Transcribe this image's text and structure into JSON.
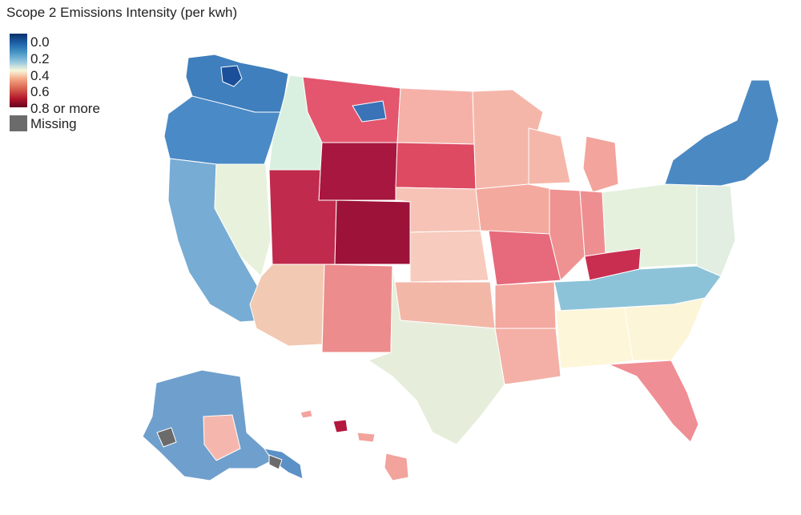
{
  "title": "Scope 2 Emissions Intensity (per kwh)",
  "legend": {
    "ticks": [
      "0.0",
      "0.2",
      "0.4",
      "0.6",
      "0.8 or more"
    ],
    "missing_label": "Missing",
    "colors": {
      "low": "#08306b",
      "mid_low": "#4393c3",
      "mid": "#f7f7dc",
      "mid_high": "#d6604d",
      "high": "#67001f",
      "missing": "#6b6b6b"
    }
  }
}
